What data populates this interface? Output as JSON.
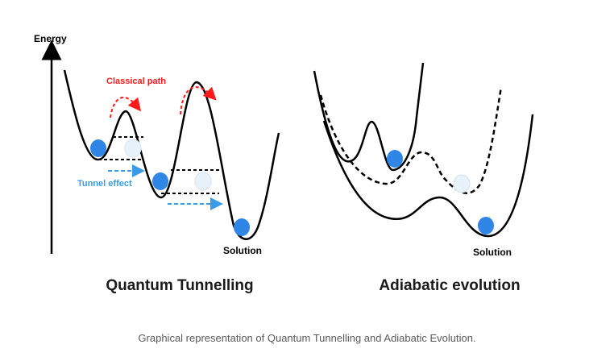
{
  "left_panel": {
    "axis_label": "Energy",
    "classical_label": "Classical path",
    "tunnel_label": "Tunnel effect",
    "solution_label": "Solution",
    "title": "Quantum Tunnelling"
  },
  "right_panel": {
    "solution_label": "Solution",
    "title": "Adiabatic evolution"
  },
  "caption": "Graphical representation of Quantum Tunnelling and Adiabatic Evolution.",
  "colors": {
    "curve": "#000000",
    "particle": "#2f86e6",
    "ghost_particle": "#e8f2fb",
    "classical_arrow": "#ff1a1a",
    "tunnel_arrow": "#3a9ce8",
    "caption": "#5a5a5a"
  }
}
